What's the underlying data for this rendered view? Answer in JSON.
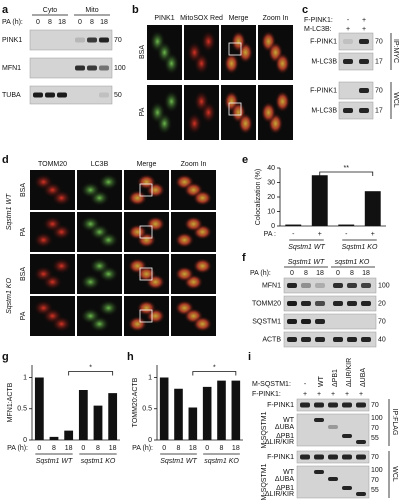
{
  "panel_labels": [
    "a",
    "b",
    "c",
    "d",
    "e",
    "f",
    "g",
    "h",
    "i"
  ],
  "a": {
    "treatment": "PA (h):",
    "times": [
      "0",
      "8",
      "18",
      "0",
      "8",
      "18"
    ],
    "fractions": [
      "Cyto",
      "Mito"
    ],
    "rows": [
      "PINK1",
      "MFN1",
      "TUBA"
    ],
    "mw": [
      "70",
      "100",
      "50"
    ]
  },
  "b": {
    "columns": [
      "PINK1",
      "MitoSOX Red",
      "Merge",
      "Zoom In"
    ],
    "rows": [
      "BSA",
      "PA"
    ]
  },
  "c": {
    "conditions": [
      {
        "label": "F-PINK1:",
        "lanes": [
          "-",
          "+"
        ]
      },
      {
        "label": "M-LC3B:",
        "lanes": [
          "+",
          "+"
        ]
      }
    ],
    "rows": [
      "F-PINK1",
      "M-LC3B",
      "F-PINK1",
      "M-LC3B"
    ],
    "mw": [
      "70",
      "17",
      "70",
      "17"
    ],
    "sections": [
      "IP:MYC",
      "WCL"
    ]
  },
  "d": {
    "columns": [
      "TOMM20",
      "LC3B",
      "Merge",
      "Zoom In"
    ],
    "rows": [
      "BSA",
      "PA",
      "BSA",
      "PA"
    ],
    "genotypes": [
      "Sqstm1 WT",
      "Sqstm1 KO"
    ]
  },
  "f": {
    "genotypes": [
      "Sqstm1 WT",
      "sqstm1 KO"
    ],
    "treatment": "PA (h):",
    "times": [
      "0",
      "8",
      "18",
      "0",
      "8",
      "18"
    ],
    "rows": [
      "MFN1",
      "TOMM20",
      "SQSTM1",
      "ACTB"
    ],
    "mw": [
      "100",
      "20",
      "70",
      "40"
    ]
  },
  "i": {
    "conditions": [
      {
        "label": "M-SQSTM1:",
        "lanes": [
          "-",
          "WT",
          "ΔPB1",
          "ΔLIR/KIR",
          "ΔUBA"
        ]
      },
      {
        "label": "F-PINK1:",
        "lanes": [
          "+",
          "+",
          "+",
          "+",
          "+"
        ]
      }
    ],
    "blocks": [
      {
        "rows": [
          "F-PINK1",
          "M-SQSTM1"
        ],
        "variants": [
          "WT",
          "ΔUBA",
          "ΔPB1",
          "ΔLIR/KIR"
        ],
        "mw": [
          "70",
          "100",
          "70",
          "55"
        ]
      },
      {
        "rows": [
          "F-PINK1",
          "M-SQSTM1"
        ],
        "variants": [
          "WT",
          "ΔUBA",
          "ΔPB1",
          "ΔLIR/KIR"
        ],
        "mw": [
          "70",
          "100",
          "70",
          "55"
        ]
      }
    ],
    "sections": [
      "IP:FLAG",
      "WCL"
    ]
  },
  "chart_data": [
    {
      "type": "bar",
      "y_label": "Colocalization (%)",
      "x_label": "PA :",
      "categories": [
        "-",
        "+",
        "-",
        "+"
      ],
      "groups": [
        "Sqstm1 WT",
        "Sqstm1 KO"
      ],
      "values": [
        1,
        35,
        1,
        24
      ],
      "color": "#111111",
      "ylim": [
        0,
        40
      ],
      "yticks": [
        0,
        10,
        20,
        30,
        40
      ],
      "significance": "**"
    },
    {
      "type": "bar",
      "y_label": "MFN1:ACTB",
      "x_label": "PA (h):",
      "categories": [
        "0",
        "8",
        "18",
        "0",
        "8",
        "18"
      ],
      "groups": [
        "Sqstm1 WT",
        "sqstm1 KO"
      ],
      "values": [
        1,
        0.05,
        0.15,
        0.8,
        0.55,
        0.75
      ],
      "color": "#111111",
      "ylim": [
        0,
        1.2
      ],
      "yticks": [
        0,
        0.5,
        1
      ],
      "significance": "*"
    },
    {
      "type": "bar",
      "y_label": "TOMM20:ACTB",
      "x_label": "PA (h):",
      "categories": [
        "0",
        "8",
        "18",
        "0",
        "8",
        "18"
      ],
      "groups": [
        "Sqstm1 WT",
        "sqstm1 KO"
      ],
      "values": [
        1,
        0.82,
        0.52,
        0.85,
        0.95,
        0.95
      ],
      "color": "#111111",
      "ylim": [
        0,
        1.2
      ],
      "yticks": [
        0,
        0.5,
        1
      ],
      "significance": "*"
    }
  ]
}
